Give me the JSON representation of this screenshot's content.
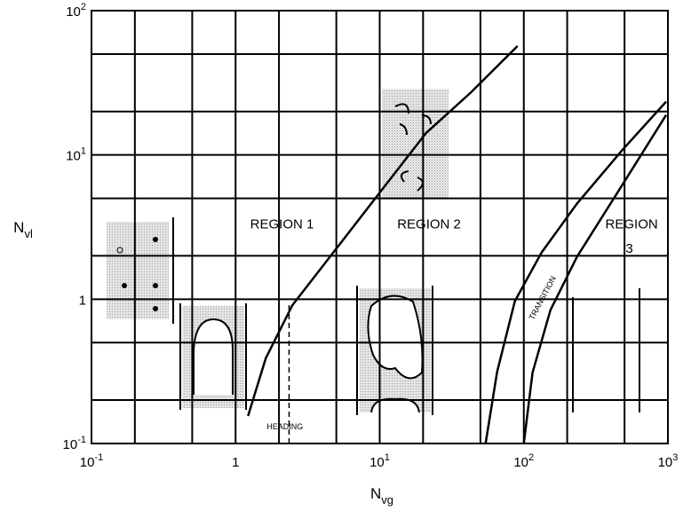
{
  "chart_data": {
    "type": "line",
    "x_label": "N",
    "x_label_sub": "vg",
    "y_label": "N",
    "y_label_sub": "vl",
    "log_x": true,
    "log_y": true,
    "grid": true,
    "xlim": [
      0.1,
      1000
    ],
    "ylim": [
      0.1,
      100
    ],
    "xticks": [
      {
        "value": 0.1,
        "label": "10",
        "sup": "-1"
      },
      {
        "value": 1,
        "label": "1"
      },
      {
        "value": 10,
        "label": "10",
        "sup": "1"
      },
      {
        "value": 100,
        "label": "10",
        "sup": "2"
      },
      {
        "value": 1000,
        "label": "10",
        "sup": "3"
      }
    ],
    "yticks": [
      {
        "value": 0.1,
        "label": "10",
        "sup": "-1"
      },
      {
        "value": 1,
        "label": "1"
      },
      {
        "value": 10,
        "label": "10",
        "sup": "1"
      },
      {
        "value": 100,
        "label": "10",
        "sup": "2"
      }
    ],
    "x_gridlines": [
      0.2,
      0.5,
      2,
      5,
      20,
      50,
      200,
      500
    ],
    "y_gridlines": [
      0.2,
      0.5,
      2,
      5,
      20,
      50
    ],
    "series": [
      {
        "color": "#000000",
        "x": [
          1.22,
          1.62,
          2.48,
          5.05,
          10.3,
          21,
          42.6,
          90.5
        ],
        "values": [
          0.155,
          0.39,
          0.91,
          2.27,
          5.69,
          14.2,
          26.9,
          56.9
        ]
      },
      {
        "color": "#000000",
        "x": [
          54.3,
          65.3,
          86.7,
          133,
          234,
          478,
          972
        ],
        "values": [
          0.1,
          0.314,
          0.97,
          2.11,
          4.6,
          10.7,
          23.4
        ]
      },
      {
        "color": "#000000",
        "x": [
          100,
          115,
          153,
          234,
          478,
          972
        ],
        "values": [
          0.1,
          0.31,
          0.84,
          1.97,
          6.1,
          18.9
        ]
      }
    ],
    "heading_line": {
      "x": 2.35,
      "ylim": [
        0.1,
        0.95
      ]
    },
    "annotations": [
      {
        "text": "REGION 1",
        "x": 2.1,
        "y": 3.1
      },
      {
        "text": "REGION 2",
        "x": 22,
        "y": 3.1
      },
      {
        "text": "REGION",
        "x": 560,
        "y": 3.1
      },
      {
        "text": "3",
        "x": 540,
        "y": 2.1
      },
      {
        "text": "HEADING",
        "x": 2.2,
        "y": 0.125
      },
      {
        "text": "TRANSITION",
        "x": 140,
        "y": 1.0,
        "angle": -62
      }
    ]
  }
}
